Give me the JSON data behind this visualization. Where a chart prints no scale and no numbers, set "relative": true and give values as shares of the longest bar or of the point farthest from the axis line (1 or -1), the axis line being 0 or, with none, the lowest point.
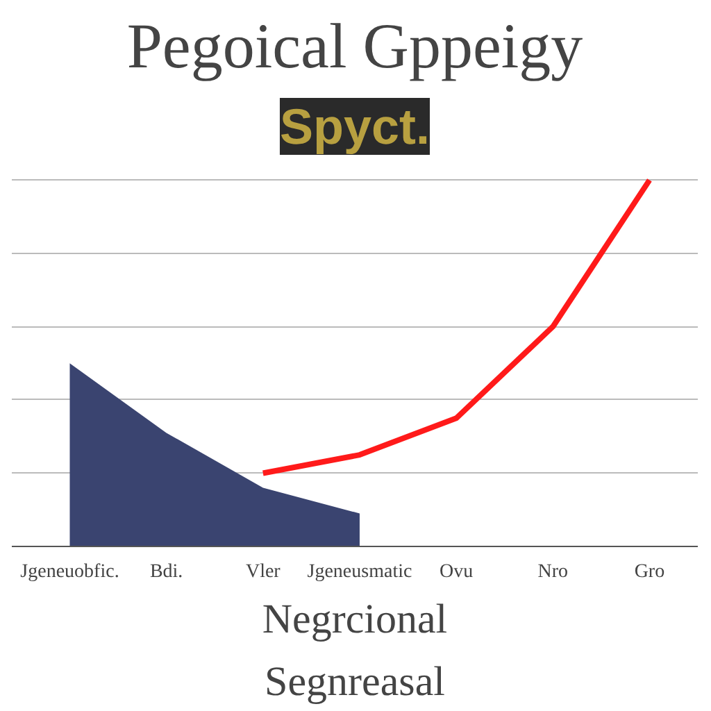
{
  "chart_data": {
    "type": "area",
    "title": "Pegoical Gppeigy",
    "subtitle": "Spyct.",
    "relative": true,
    "grid": "y",
    "categories": [
      "Jgeneuobfic.",
      "Bdi.",
      "Vler",
      "Jgeneusmatic",
      "Ovu",
      "Nro",
      "Gro"
    ],
    "series": [
      {
        "color": "#3a4470",
        "values": [
          0.5,
          0.31,
          0.16,
          0.09,
          null,
          null,
          null
        ]
      },
      {
        "type": "line",
        "color": "#ff1a1a",
        "values": [
          null,
          null,
          0.2,
          0.25,
          0.35,
          0.6,
          1.0
        ]
      }
    ],
    "annotations": [
      "Negrcional",
      "Segnreasal"
    ]
  }
}
